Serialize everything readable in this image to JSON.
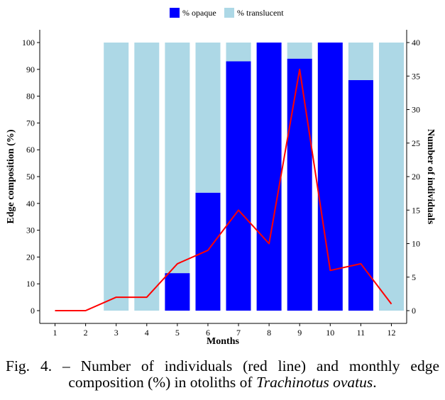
{
  "chart_data": {
    "type": "bar",
    "stacked": true,
    "categories": [
      "1",
      "2",
      "3",
      "4",
      "5",
      "6",
      "7",
      "8",
      "9",
      "10",
      "11",
      "12"
    ],
    "series": [
      {
        "name": "% opaque",
        "color": "#0000ff",
        "axis": "left",
        "values": [
          null,
          null,
          0,
          0,
          14,
          44,
          93,
          100,
          94,
          100,
          86,
          0
        ]
      },
      {
        "name": "% translucent",
        "color": "#add8e6",
        "axis": "left",
        "values": [
          null,
          null,
          100,
          100,
          86,
          56,
          7,
          0,
          6,
          0,
          14,
          100
        ]
      }
    ],
    "line_series": {
      "color": "#ff0000",
      "axis": "right",
      "values": [
        0,
        0,
        2,
        2,
        7,
        9,
        15,
        10,
        36,
        6,
        7,
        1
      ]
    },
    "xlabel": "Months",
    "ylabel": "Edge composition (%)",
    "y2label": "Number of individuals",
    "ylim": [
      0,
      100
    ],
    "y2lim": [
      0,
      40
    ],
    "yticks": [
      0,
      10,
      20,
      30,
      40,
      50,
      60,
      70,
      80,
      90,
      100
    ],
    "y2ticks": [
      0,
      5,
      10,
      15,
      20,
      25,
      30,
      35,
      40
    ],
    "legend": "top",
    "grid": false
  },
  "caption": {
    "line1": "Fig. 4. – Number of individuals (red line) and monthly edge",
    "line2_prefix": "composition (%) in otoliths of ",
    "species": "Trachinotus ovatus",
    "line2_suffix": "."
  }
}
